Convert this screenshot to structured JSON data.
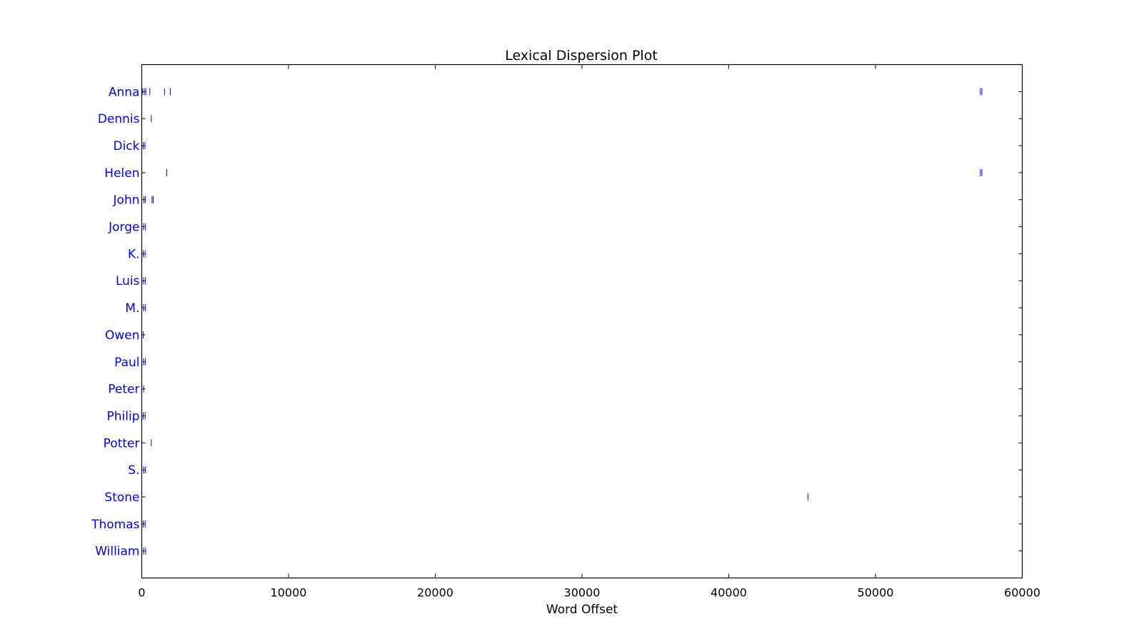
{
  "chart_data": {
    "type": "scatter",
    "title": "Lexical Dispersion Plot",
    "xlabel": "Word Offset",
    "ylabel": "",
    "xlim": [
      0,
      60000
    ],
    "xticks": [
      "0",
      "10000",
      "20000",
      "30000",
      "40000",
      "50000",
      "60000"
    ],
    "xtick_values": [
      0,
      10000,
      20000,
      30000,
      40000,
      50000,
      60000
    ],
    "grid": false,
    "marker": "|",
    "marker_color": "#0000ff",
    "label_color": "#0000ff",
    "categories": [
      "Anna",
      "Dennis",
      "Dick",
      "Helen",
      "John",
      "Jorge",
      "K.",
      "Luis",
      "M.",
      "Owen",
      "Paul",
      "Peter",
      "Philip",
      "Potter",
      "S.",
      "Stone",
      "Thomas",
      "William"
    ],
    "series": [
      {
        "values": [
          40,
          170,
          280,
          550,
          1550,
          1950,
          57150,
          57250
        ]
      },
      {
        "values": [
          650
        ]
      },
      {
        "values": [
          100,
          220
        ]
      },
      {
        "values": [
          1700,
          57150,
          57250
        ]
      },
      {
        "values": [
          150,
          250,
          700,
          780
        ]
      },
      {
        "values": [
          120,
          250
        ]
      },
      {
        "values": [
          100,
          230
        ]
      },
      {
        "values": [
          120,
          250
        ]
      },
      {
        "values": [
          120,
          250
        ]
      },
      {
        "values": [
          100
        ]
      },
      {
        "values": [
          120,
          250
        ]
      },
      {
        "values": [
          130
        ]
      },
      {
        "values": [
          100,
          230
        ]
      },
      {
        "values": [
          650
        ]
      },
      {
        "values": [
          130,
          250
        ]
      },
      {
        "values": [
          45400
        ]
      },
      {
        "values": [
          100,
          230
        ]
      },
      {
        "values": [
          120,
          260
        ]
      }
    ]
  }
}
